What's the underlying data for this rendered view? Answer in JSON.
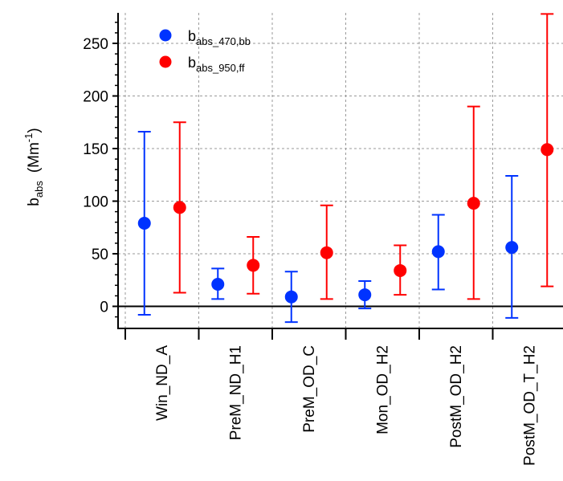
{
  "chart_data": {
    "type": "scatter",
    "title": "",
    "xlabel": "",
    "ylabel": {
      "main": "b",
      "sub": "abs",
      "unit_prefix": "(Mm",
      "unit_exp": "-1",
      "unit_suffix": ")"
    },
    "categories": [
      "Win_ND_A",
      "PreM_ND_H1",
      "PreM_OD_C",
      "Mon_OD_H2",
      "PostM_OD_H2",
      "PostM_OD_T_H2"
    ],
    "ylim": [
      -22,
      278
    ],
    "yticks": [
      "0",
      "50",
      "100",
      "150",
      "200",
      "250"
    ],
    "ytick_values": [
      0,
      50,
      100,
      150,
      200,
      250
    ],
    "grid": true,
    "legend_position": "top-left",
    "series": [
      {
        "legend_main": "b",
        "legend_sub": "abs_470,bb",
        "color": "#0033ff",
        "values": [
          79,
          21,
          9,
          11,
          52,
          56
        ],
        "lower": [
          -8,
          7,
          -15,
          -2,
          16,
          -11
        ],
        "upper": [
          166,
          36,
          33,
          24,
          87,
          124
        ]
      },
      {
        "legend_main": "b",
        "legend_sub": "abs_950,ff",
        "color": "#ff0000",
        "values": [
          94,
          39,
          51,
          34,
          98,
          149
        ],
        "lower": [
          13,
          12,
          7,
          11,
          7,
          19
        ],
        "upper": [
          175,
          66,
          96,
          58,
          190,
          278
        ]
      }
    ]
  }
}
